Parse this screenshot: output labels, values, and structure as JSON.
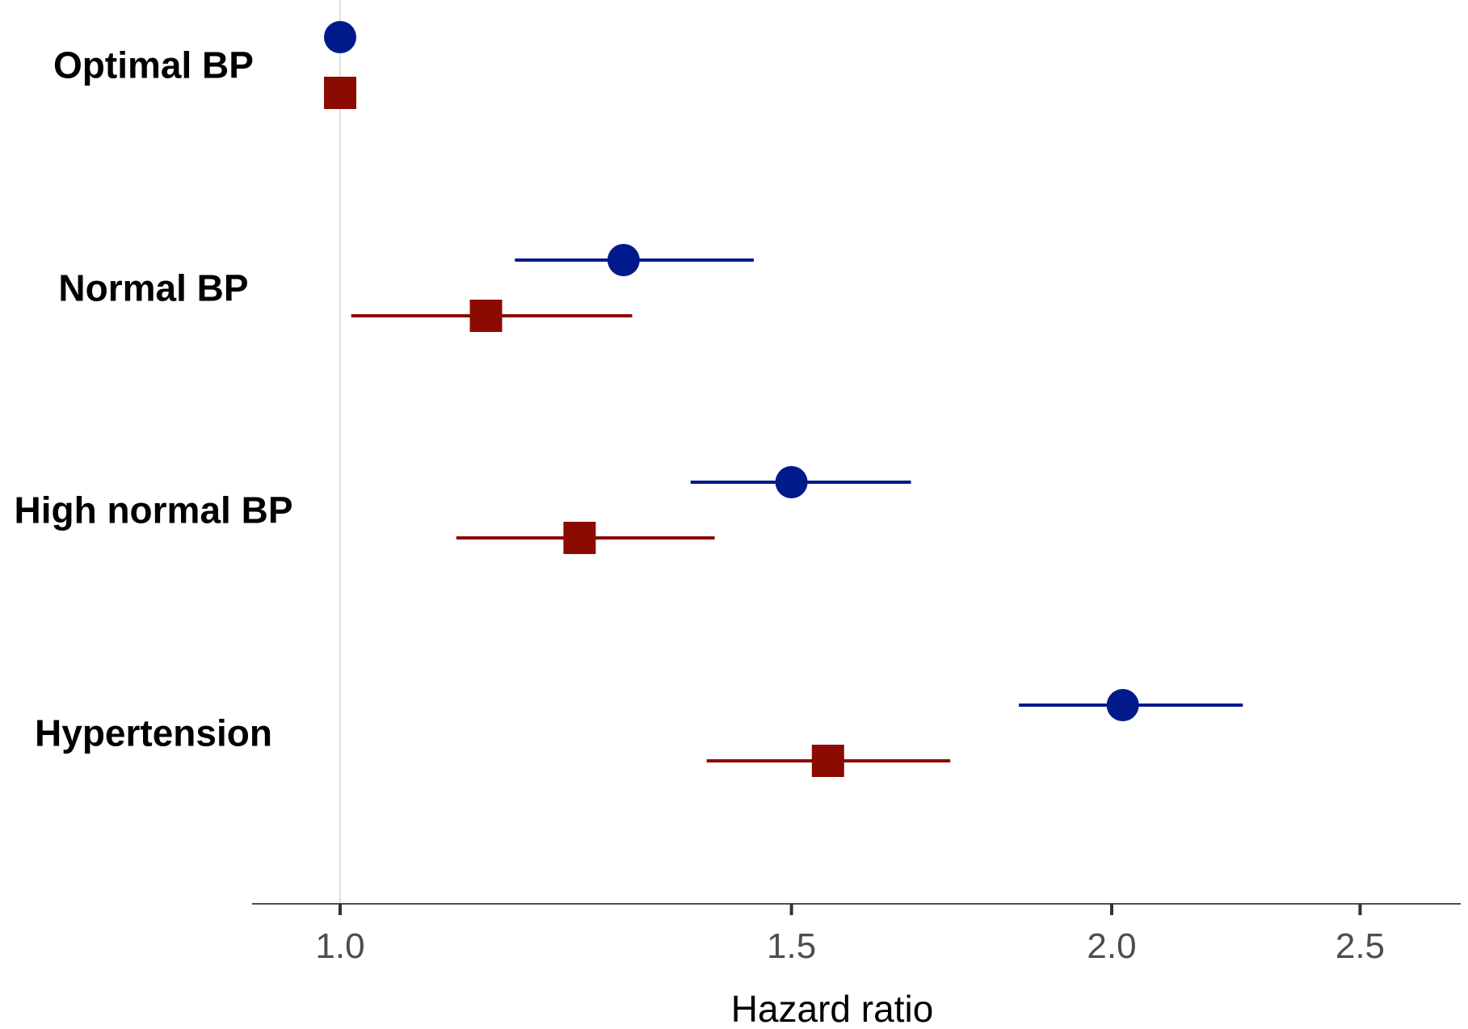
{
  "chart_data": {
    "type": "forest",
    "title": "",
    "xlabel": "Hazard ratio",
    "ylabel": "",
    "x_scale": "log",
    "xlim": [
      0.92,
      2.75
    ],
    "x_ticks": [
      1.0,
      1.5,
      2.0,
      2.5
    ],
    "x_tick_labels": [
      "1.0",
      "1.5",
      "2.0",
      "2.5"
    ],
    "reference_line": 1.0,
    "grid": false,
    "legend": "none",
    "categories": [
      "Optimal BP",
      "Normal BP",
      "High normal BP",
      "Hypertension"
    ],
    "series": [
      {
        "marker": "circle",
        "color": "#001a8c",
        "points": [
          {
            "category": "Optimal BP",
            "estimate": 1.0,
            "lower": null,
            "upper": null
          },
          {
            "category": "Normal BP",
            "estimate": 1.29,
            "lower": 1.17,
            "upper": 1.45
          },
          {
            "category": "High normal BP",
            "estimate": 1.5,
            "lower": 1.37,
            "upper": 1.67
          },
          {
            "category": "Hypertension",
            "estimate": 2.02,
            "lower": 1.84,
            "upper": 2.25
          }
        ]
      },
      {
        "marker": "square",
        "color": "#8b0b00",
        "points": [
          {
            "category": "Optimal BP",
            "estimate": 1.0,
            "lower": null,
            "upper": null
          },
          {
            "category": "Normal BP",
            "estimate": 1.14,
            "lower": 1.01,
            "upper": 1.3
          },
          {
            "category": "High normal BP",
            "estimate": 1.24,
            "lower": 1.11,
            "upper": 1.4
          },
          {
            "category": "Hypertension",
            "estimate": 1.55,
            "lower": 1.39,
            "upper": 1.73
          }
        ]
      }
    ]
  }
}
